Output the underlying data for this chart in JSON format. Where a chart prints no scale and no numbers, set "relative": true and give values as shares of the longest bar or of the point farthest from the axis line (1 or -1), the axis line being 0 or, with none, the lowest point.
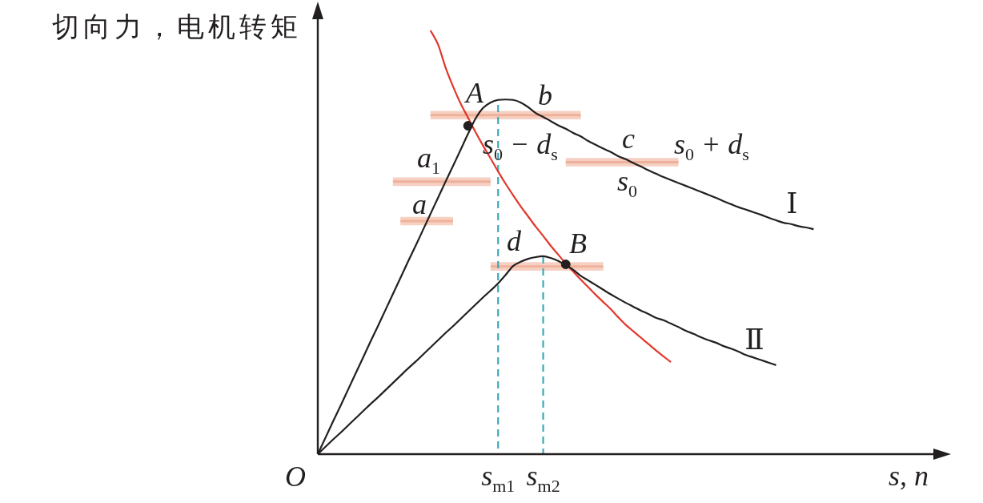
{
  "chart_data": {
    "type": "line",
    "relative": true,
    "ylabel": "切向力，电机转矩",
    "xlabel": "s, n",
    "legend": false,
    "marker": "none",
    "categories": [
      null,
      null,
      null,
      null,
      null,
      null,
      null,
      null,
      null,
      null,
      null,
      null,
      null,
      null,
      null,
      null,
      null,
      null,
      null,
      null,
      null,
      null,
      null,
      null,
      "s$_{m1}$",
      null,
      null,
      null,
      null,
      null,
      "s$_{m2}$",
      null,
      null,
      null,
      null,
      null,
      null,
      null,
      null,
      null,
      null,
      null,
      null,
      null,
      null,
      null,
      null,
      null,
      null,
      null,
      null,
      null,
      null,
      null,
      null,
      null,
      null,
      null,
      null,
      null,
      null,
      null,
      null,
      null,
      null,
      null,
      null,
      null,
      null,
      null,
      null,
      null,
      null,
      null,
      null,
      null,
      null,
      null,
      null,
      null,
      null,
      null,
      null,
      null
    ],
    "series": [
      {
        "name": "Ⅰ",
        "color": "#231f20",
        "values": [
          0,
          0.038,
          0.076,
          0.113,
          0.151,
          0.189,
          0.227,
          0.265,
          0.302,
          0.34,
          0.378,
          0.416,
          0.454,
          0.491,
          0.529,
          0.567,
          0.605,
          0.643,
          0.68,
          0.718,
          0.756,
          0.792,
          0.817,
          0.83,
          0.836,
          0.837,
          0.836,
          0.83,
          0.819,
          0.805,
          0.796,
          0.786,
          0.776,
          0.768,
          0.758,
          0.75,
          0.739,
          0.73,
          0.721,
          0.713,
          0.703,
          0.696,
          0.687,
          0.679,
          0.67,
          0.662,
          0.654,
          0.647,
          0.64,
          0.633,
          0.626,
          0.619,
          0.612,
          0.605,
          0.597,
          0.59,
          0.583,
          0.577,
          0.571,
          0.565,
          0.558,
          0.552,
          0.546,
          0.543,
          0.538,
          0.535,
          0.531,
          null,
          null,
          null,
          null,
          null,
          null,
          null,
          null,
          null,
          null,
          null,
          null,
          null,
          null,
          null,
          null,
          null
        ]
      },
      {
        "name": "Ⅱ",
        "color": "#231f20",
        "values": [
          0,
          0.017,
          0.034,
          0.05,
          0.067,
          0.084,
          0.101,
          0.118,
          0.134,
          0.151,
          0.168,
          0.185,
          0.202,
          0.218,
          0.235,
          0.252,
          0.269,
          0.286,
          0.302,
          0.319,
          0.336,
          0.353,
          0.37,
          0.386,
          0.403,
          0.423,
          0.444,
          0.454,
          0.461,
          0.465,
          0.467,
          0.463,
          0.456,
          0.446,
          0.435,
          0.421,
          0.41,
          0.399,
          0.388,
          0.377,
          0.367,
          0.357,
          0.348,
          0.339,
          0.331,
          0.322,
          0.316,
          0.308,
          0.3,
          0.291,
          0.284,
          0.276,
          0.269,
          0.263,
          0.255,
          0.249,
          0.242,
          0.234,
          0.228,
          0.222,
          0.216,
          0.21,
          null,
          null,
          null,
          null,
          null,
          null,
          null,
          null,
          null,
          null,
          null,
          null,
          null,
          null,
          null,
          null,
          null,
          null,
          null,
          null,
          null,
          null
        ]
      },
      {
        "color": "#e2372b",
        "values": [
          null,
          null,
          null,
          null,
          null,
          null,
          null,
          null,
          null,
          null,
          null,
          null,
          null,
          null,
          null,
          1.0,
          0.967,
          0.913,
          0.868,
          0.828,
          0.794,
          0.76,
          0.728,
          0.698,
          0.667,
          0.638,
          0.611,
          0.585,
          0.561,
          0.537,
          0.515,
          0.492,
          0.471,
          0.45,
          0.431,
          0.412,
          0.394,
          0.376,
          0.359,
          0.342,
          0.323,
          0.305,
          0.29,
          0.275,
          0.26,
          0.245,
          0.231,
          0.217,
          null,
          null,
          null,
          null,
          null,
          null,
          null,
          null,
          null,
          null,
          null,
          null,
          null,
          null,
          null,
          null,
          null,
          null,
          null,
          null,
          null,
          null,
          null,
          null,
          null,
          null,
          null,
          null,
          null,
          null,
          null,
          null,
          null,
          null,
          null,
          null
        ]
      },
      {
        "color": "#f0b19a",
        "values": [
          null,
          null,
          null,
          null,
          null,
          null,
          null,
          null,
          null,
          null,
          null,
          null,
          null,
          null,
          null,
          0.8,
          0.8,
          0.8,
          0.8,
          0.8,
          0.8,
          0.8,
          0.8,
          0.8,
          0.8,
          0.8,
          0.8,
          0.8,
          0.8,
          0.8,
          0.8,
          0.8,
          0.8,
          0.8,
          0.8,
          0.8,
          null,
          null,
          null,
          null,
          null,
          null,
          null,
          null,
          null,
          null,
          null,
          null,
          null,
          null,
          null,
          null,
          null,
          null,
          null,
          null,
          null,
          null,
          null,
          null,
          null,
          null,
          null,
          null,
          null,
          null,
          null,
          null,
          null,
          null,
          null,
          null,
          null,
          null,
          null,
          null,
          null,
          null,
          null,
          null,
          null,
          null,
          null,
          null
        ],
        "lower": [
          null,
          null,
          null,
          null,
          null,
          null,
          null,
          null,
          null,
          null,
          null,
          null,
          null,
          null,
          null,
          0.79,
          0.79,
          0.79,
          0.79,
          0.79,
          0.79,
          0.79,
          0.79,
          0.79,
          0.79,
          0.79,
          0.79,
          0.79,
          0.79,
          0.79,
          0.79,
          0.79,
          0.79,
          0.79,
          0.79,
          0.79,
          null,
          null,
          null,
          null,
          null,
          null,
          null,
          null,
          null,
          null,
          null,
          null,
          null,
          null,
          null,
          null,
          null,
          null,
          null,
          null,
          null,
          null,
          null,
          null,
          null,
          null,
          null,
          null,
          null,
          null,
          null,
          null,
          null,
          null,
          null,
          null,
          null,
          null,
          null,
          null,
          null,
          null,
          null,
          null,
          null,
          null,
          null,
          null
        ],
        "upper": [
          null,
          null,
          null,
          null,
          null,
          null,
          null,
          null,
          null,
          null,
          null,
          null,
          null,
          null,
          null,
          0.81,
          0.81,
          0.81,
          0.81,
          0.81,
          0.81,
          0.81,
          0.81,
          0.81,
          0.81,
          0.81,
          0.81,
          0.81,
          0.81,
          0.81,
          0.81,
          0.81,
          0.81,
          0.81,
          0.81,
          0.81,
          null,
          null,
          null,
          null,
          null,
          null,
          null,
          null,
          null,
          null,
          null,
          null,
          null,
          null,
          null,
          null,
          null,
          null,
          null,
          null,
          null,
          null,
          null,
          null,
          null,
          null,
          null,
          null,
          null,
          null,
          null,
          null,
          null,
          null,
          null,
          null,
          null,
          null,
          null,
          null,
          null,
          null,
          null,
          null,
          null,
          null,
          null,
          null
        ]
      },
      {
        "color": "#efb09b",
        "values": [
          null,
          null,
          null,
          null,
          null,
          null,
          null,
          null,
          null,
          null,
          0.643,
          0.643,
          0.643,
          0.643,
          0.643,
          0.643,
          0.643,
          0.643,
          0.643,
          0.643,
          0.643,
          0.643,
          0.643,
          0.643,
          null,
          null,
          null,
          null,
          null,
          null,
          null,
          null,
          null,
          null,
          null,
          null,
          null,
          null,
          null,
          null,
          null,
          null,
          null,
          null,
          null,
          null,
          null,
          null,
          null,
          null,
          null,
          null,
          null,
          null,
          null,
          null,
          null,
          null,
          null,
          null,
          null,
          null,
          null,
          null,
          null,
          null,
          null,
          null,
          null,
          null,
          null,
          null,
          null,
          null,
          null,
          null,
          null,
          null,
          null,
          null,
          null,
          null,
          null,
          null
        ],
        "lower": [
          null,
          null,
          null,
          null,
          null,
          null,
          null,
          null,
          null,
          null,
          0.633,
          0.633,
          0.633,
          0.633,
          0.633,
          0.633,
          0.633,
          0.633,
          0.633,
          0.633,
          0.633,
          0.633,
          0.633,
          0.633,
          null,
          null,
          null,
          null,
          null,
          null,
          null,
          null,
          null,
          null,
          null,
          null,
          null,
          null,
          null,
          null,
          null,
          null,
          null,
          null,
          null,
          null,
          null,
          null,
          null,
          null,
          null,
          null,
          null,
          null,
          null,
          null,
          null,
          null,
          null,
          null,
          null,
          null,
          null,
          null,
          null,
          null,
          null,
          null,
          null,
          null,
          null,
          null,
          null,
          null,
          null,
          null,
          null,
          null,
          null,
          null,
          null,
          null,
          null,
          null
        ],
        "upper": [
          null,
          null,
          null,
          null,
          null,
          null,
          null,
          null,
          null,
          null,
          0.653,
          0.653,
          0.653,
          0.653,
          0.653,
          0.653,
          0.653,
          0.653,
          0.653,
          0.653,
          0.653,
          0.653,
          0.653,
          0.653,
          null,
          null,
          null,
          null,
          null,
          null,
          null,
          null,
          null,
          null,
          null,
          null,
          null,
          null,
          null,
          null,
          null,
          null,
          null,
          null,
          null,
          null,
          null,
          null,
          null,
          null,
          null,
          null,
          null,
          null,
          null,
          null,
          null,
          null,
          null,
          null,
          null,
          null,
          null,
          null,
          null,
          null,
          null,
          null,
          null,
          null,
          null,
          null,
          null,
          null,
          null,
          null,
          null,
          null,
          null,
          null,
          null,
          null,
          null,
          null
        ]
      },
      {
        "color": "#f1b29a",
        "values": [
          null,
          null,
          null,
          null,
          null,
          null,
          null,
          null,
          null,
          null,
          null,
          0.55,
          0.55,
          0.55,
          0.55,
          0.55,
          0.55,
          0.55,
          0.55,
          null,
          null,
          null,
          null,
          null,
          null,
          null,
          null,
          null,
          null,
          null,
          null,
          null,
          null,
          null,
          null,
          null,
          null,
          null,
          null,
          null,
          null,
          null,
          null,
          null,
          null,
          null,
          null,
          null,
          null,
          null,
          null,
          null,
          null,
          null,
          null,
          null,
          null,
          null,
          null,
          null,
          null,
          null,
          null,
          null,
          null,
          null,
          null,
          null,
          null,
          null,
          null,
          null,
          null,
          null,
          null,
          null,
          null,
          null,
          null,
          null,
          null,
          null,
          null,
          null
        ],
        "lower": [
          null,
          null,
          null,
          null,
          null,
          null,
          null,
          null,
          null,
          null,
          null,
          0.54,
          0.54,
          0.54,
          0.54,
          0.54,
          0.54,
          0.54,
          0.54,
          null,
          null,
          null,
          null,
          null,
          null,
          null,
          null,
          null,
          null,
          null,
          null,
          null,
          null,
          null,
          null,
          null,
          null,
          null,
          null,
          null,
          null,
          null,
          null,
          null,
          null,
          null,
          null,
          null,
          null,
          null,
          null,
          null,
          null,
          null,
          null,
          null,
          null,
          null,
          null,
          null,
          null,
          null,
          null,
          null,
          null,
          null,
          null,
          null,
          null,
          null,
          null,
          null,
          null,
          null,
          null,
          null,
          null,
          null,
          null,
          null,
          null,
          null,
          null,
          null
        ],
        "upper": [
          null,
          null,
          null,
          null,
          null,
          null,
          null,
          null,
          null,
          null,
          null,
          0.56,
          0.56,
          0.56,
          0.56,
          0.56,
          0.56,
          0.56,
          0.56,
          null,
          null,
          null,
          null,
          null,
          null,
          null,
          null,
          null,
          null,
          null,
          null,
          null,
          null,
          null,
          null,
          null,
          null,
          null,
          null,
          null,
          null,
          null,
          null,
          null,
          null,
          null,
          null,
          null,
          null,
          null,
          null,
          null,
          null,
          null,
          null,
          null,
          null,
          null,
          null,
          null,
          null,
          null,
          null,
          null,
          null,
          null,
          null,
          null,
          null,
          null,
          null,
          null,
          null,
          null,
          null,
          null,
          null,
          null,
          null,
          null,
          null,
          null,
          null,
          null
        ]
      },
      {
        "color": "#eeb09a",
        "values": [
          null,
          null,
          null,
          null,
          null,
          null,
          null,
          null,
          null,
          null,
          null,
          null,
          null,
          null,
          null,
          null,
          null,
          null,
          null,
          null,
          null,
          null,
          null,
          null,
          null,
          null,
          null,
          null,
          null,
          null,
          null,
          null,
          null,
          0.689,
          0.689,
          0.689,
          0.689,
          0.689,
          0.689,
          0.689,
          0.689,
          0.689,
          0.689,
          0.689,
          0.689,
          0.689,
          0.689,
          0.689,
          0.689,
          null,
          null,
          null,
          null,
          null,
          null,
          null,
          null,
          null,
          null,
          null,
          null,
          null,
          null,
          null,
          null,
          null,
          null,
          null,
          null,
          null,
          null,
          null,
          null,
          null,
          null,
          null,
          null,
          null,
          null,
          null,
          null,
          null,
          null,
          null
        ],
        "lower": [
          null,
          null,
          null,
          null,
          null,
          null,
          null,
          null,
          null,
          null,
          null,
          null,
          null,
          null,
          null,
          null,
          null,
          null,
          null,
          null,
          null,
          null,
          null,
          null,
          null,
          null,
          null,
          null,
          null,
          null,
          null,
          null,
          null,
          0.679,
          0.679,
          0.679,
          0.679,
          0.679,
          0.679,
          0.679,
          0.679,
          0.679,
          0.679,
          0.679,
          0.679,
          0.679,
          0.679,
          0.679,
          0.679,
          null,
          null,
          null,
          null,
          null,
          null,
          null,
          null,
          null,
          null,
          null,
          null,
          null,
          null,
          null,
          null,
          null,
          null,
          null,
          null,
          null,
          null,
          null,
          null,
          null,
          null,
          null,
          null,
          null,
          null,
          null,
          null,
          null,
          null,
          null
        ],
        "upper": [
          null,
          null,
          null,
          null,
          null,
          null,
          null,
          null,
          null,
          null,
          null,
          null,
          null,
          null,
          null,
          null,
          null,
          null,
          null,
          null,
          null,
          null,
          null,
          null,
          null,
          null,
          null,
          null,
          null,
          null,
          null,
          null,
          null,
          0.699,
          0.699,
          0.699,
          0.699,
          0.699,
          0.699,
          0.699,
          0.699,
          0.699,
          0.699,
          0.699,
          0.699,
          0.699,
          0.699,
          0.699,
          0.699,
          null,
          null,
          null,
          null,
          null,
          null,
          null,
          null,
          null,
          null,
          null,
          null,
          null,
          null,
          null,
          null,
          null,
          null,
          null,
          null,
          null,
          null,
          null,
          null,
          null,
          null,
          null,
          null,
          null,
          null,
          null,
          null,
          null,
          null,
          null
        ]
      },
      {
        "color": "#f0b29b",
        "values": [
          null,
          null,
          null,
          null,
          null,
          null,
          null,
          null,
          null,
          null,
          null,
          null,
          null,
          null,
          null,
          null,
          null,
          null,
          null,
          null,
          null,
          null,
          null,
          0.443,
          0.443,
          0.443,
          0.443,
          0.443,
          0.443,
          0.443,
          0.443,
          0.443,
          0.443,
          0.443,
          0.443,
          0.443,
          0.443,
          0.443,
          0.443,
          null,
          null,
          null,
          null,
          null,
          null,
          null,
          null,
          null,
          null,
          null,
          null,
          null,
          null,
          null,
          null,
          null,
          null,
          null,
          null,
          null,
          null,
          null,
          null,
          null,
          null,
          null,
          null,
          null,
          null,
          null,
          null,
          null,
          null,
          null,
          null,
          null,
          null,
          null,
          null,
          null,
          null,
          null,
          null,
          null
        ],
        "lower": [
          null,
          null,
          null,
          null,
          null,
          null,
          null,
          null,
          null,
          null,
          null,
          null,
          null,
          null,
          null,
          null,
          null,
          null,
          null,
          null,
          null,
          null,
          null,
          0.433,
          0.433,
          0.433,
          0.433,
          0.433,
          0.433,
          0.433,
          0.433,
          0.433,
          0.433,
          0.433,
          0.433,
          0.433,
          0.433,
          0.433,
          0.433,
          null,
          null,
          null,
          null,
          null,
          null,
          null,
          null,
          null,
          null,
          null,
          null,
          null,
          null,
          null,
          null,
          null,
          null,
          null,
          null,
          null,
          null,
          null,
          null,
          null,
          null,
          null,
          null,
          null,
          null,
          null,
          null,
          null,
          null,
          null,
          null,
          null,
          null,
          null,
          null,
          null,
          null,
          null,
          null,
          null
        ],
        "upper": [
          null,
          null,
          null,
          null,
          null,
          null,
          null,
          null,
          null,
          null,
          null,
          null,
          null,
          null,
          null,
          null,
          null,
          null,
          null,
          null,
          null,
          null,
          null,
          0.453,
          0.453,
          0.453,
          0.453,
          0.453,
          0.453,
          0.453,
          0.453,
          0.453,
          0.453,
          0.453,
          0.453,
          0.453,
          0.453,
          0.453,
          0.453,
          null,
          null,
          null,
          null,
          null,
          null,
          null,
          null,
          null,
          null,
          null,
          null,
          null,
          null,
          null,
          null,
          null,
          null,
          null,
          null,
          null,
          null,
          null,
          null,
          null,
          null,
          null,
          null,
          null,
          null,
          null,
          null,
          null,
          null,
          null,
          null,
          null,
          null,
          null,
          null,
          null,
          null,
          null,
          null,
          null
        ]
      },
      {
        "color": "#3ea8b8",
        "line_style": "dashed",
        "x": [
          "s$_{m1}$",
          "s$_{m1}$"
        ],
        "values": [
          0.824,
          0
        ]
      },
      {
        "color": "#3ea8b8",
        "line_style": "dashed",
        "x": [
          "s$_{m2}$",
          "s$_{m2}$"
        ],
        "values": [
          0.467,
          0
        ]
      },
      {
        "type": "scatter",
        "color": "#231f20",
        "marker": "circle",
        "values": [
          null,
          null,
          null,
          null,
          null,
          null,
          null,
          null,
          null,
          null,
          null,
          null,
          null,
          null,
          null,
          null,
          null,
          null,
          null,
          null,
          0.775,
          null,
          null,
          null,
          null,
          null,
          null,
          null,
          null,
          null,
          null,
          null,
          null,
          0.448,
          null,
          null,
          null,
          null,
          null,
          null,
          null,
          null,
          null,
          null,
          null,
          null,
          null,
          null,
          null,
          null,
          null,
          null,
          null,
          null,
          null,
          null,
          null,
          null,
          null,
          null,
          null,
          null,
          null,
          null,
          null,
          null,
          null,
          null,
          null,
          null,
          null,
          null,
          null,
          null,
          null,
          null,
          null,
          null,
          null,
          null,
          null,
          null,
          null,
          null
        ]
      }
    ],
    "annotations": [
      "O",
      "A",
      "b",
      "a$_{1}$",
      "a",
      "s$_{0}$ − d$_{s}$",
      "c",
      "s$_{0}$ + d$_{s}$",
      "s$_{0}$",
      "d",
      "B"
    ]
  }
}
